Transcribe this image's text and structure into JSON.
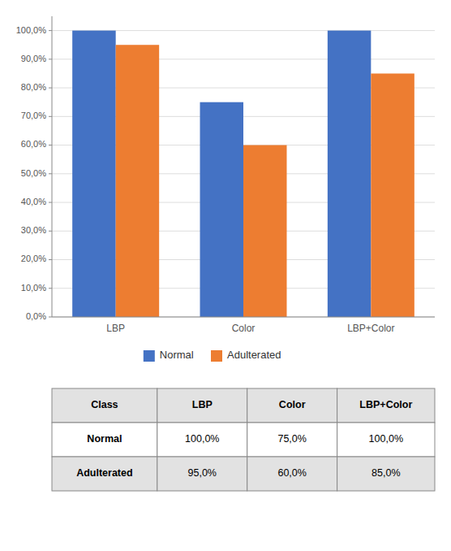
{
  "chart_data": {
    "type": "bar",
    "categories": [
      "LBP",
      "Color",
      "LBP+Color"
    ],
    "series": [
      {
        "name": "Normal",
        "color": "#4472C4",
        "values": [
          100.0,
          75.0,
          100.0
        ],
        "value_labels": [
          "100,0%",
          "75,0%",
          "100,0%"
        ]
      },
      {
        "name": "Adulterated",
        "color": "#ED7D31",
        "values": [
          95.0,
          60.0,
          85.0
        ],
        "value_labels": [
          "95,0%",
          "60,0%",
          "85,0%"
        ]
      }
    ],
    "ylim": [
      0,
      105
    ],
    "yticks": [
      {
        "value": 0,
        "label": "0,0%"
      },
      {
        "value": 10,
        "label": "10,0%"
      },
      {
        "value": 20,
        "label": "20,0%"
      },
      {
        "value": 30,
        "label": "30,0%"
      },
      {
        "value": 40,
        "label": "40,0%"
      },
      {
        "value": 50,
        "label": "50,0%"
      },
      {
        "value": 60,
        "label": "60,0%"
      },
      {
        "value": 70,
        "label": "70,0%"
      },
      {
        "value": 80,
        "label": "80,0%"
      },
      {
        "value": 90,
        "label": "90,0%"
      },
      {
        "value": 100,
        "label": "100,0%"
      }
    ],
    "grid": true,
    "legend": "bottom",
    "table_header": "Class"
  }
}
